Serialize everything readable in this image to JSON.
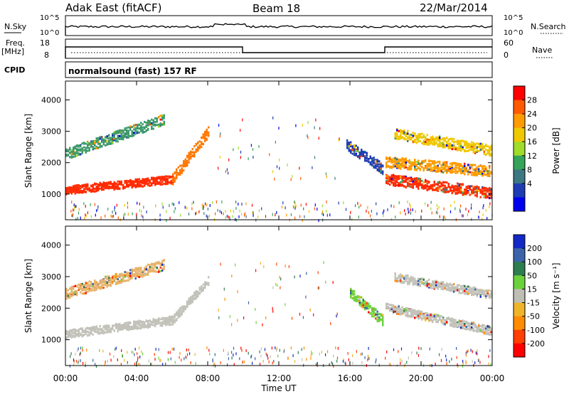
{
  "header": {
    "radar": "Adak East (fitACF)",
    "beam": "Beam 18",
    "date": "22/Mar/2014"
  },
  "top_panels": {
    "nsky_label": "N.Sky",
    "nsearch_label": "N.Search",
    "scale_hi": "10^5",
    "scale_lo": "10^0",
    "freq_label": "Freq.",
    "freq_unit": "[MHz]",
    "freq_ticks": [
      "18",
      "8"
    ],
    "nave_label": "Nave",
    "nave_ticks": [
      "60",
      "0"
    ],
    "cpid_label": "CPID",
    "cpid_text": "normalsound (fast) 157 RF"
  },
  "chart_data": [
    {
      "type": "heatmap",
      "name": "power",
      "ylabel": "Slant Range [km]",
      "xlabel": "",
      "x_ticks": [
        "00:00",
        "04:00",
        "08:00",
        "12:00",
        "16:00",
        "20:00",
        "00:00"
      ],
      "y_ticks": [
        1000,
        2000,
        3000,
        4000
      ],
      "xlim_hours": [
        0,
        24
      ],
      "ylim_km": [
        180,
        4600
      ],
      "colorbar": {
        "label": "Power [dB]",
        "ticks": [
          "28",
          "24",
          "20",
          "16",
          "12",
          "8",
          "4"
        ],
        "colors": [
          "#ff0000",
          "#ff5a00",
          "#ff9b00",
          "#f0c800",
          "#a0dc2a",
          "#34a45a",
          "#3c7882",
          "#1e3cb4",
          "#0000f0"
        ]
      },
      "layers": [
        {
          "from_h": 0.0,
          "to_h": 6.0,
          "r0": 1150,
          "r1": 1500,
          "color": "#ff2a00"
        },
        {
          "from_h": 6.0,
          "to_h": 8.0,
          "r0": 1500,
          "r1": 3000,
          "color": "#ff7800"
        },
        {
          "from_h": 0.0,
          "to_h": 5.5,
          "r0": 2300,
          "r1": 3400,
          "color": "#3c9a6a"
        },
        {
          "from_h": 18.0,
          "to_h": 24.0,
          "r0": 1500,
          "r1": 1050,
          "color": "#ff2a00"
        },
        {
          "from_h": 18.0,
          "to_h": 24.0,
          "r0": 2050,
          "r1": 1750,
          "color": "#ff9b00"
        },
        {
          "from_h": 18.5,
          "to_h": 24.0,
          "r0": 2950,
          "r1": 2400,
          "color": "#f0c800"
        },
        {
          "from_h": 15.8,
          "to_h": 17.9,
          "r0": 2600,
          "r1": 1800,
          "color": "#1e3cb4"
        }
      ]
    },
    {
      "type": "heatmap",
      "name": "velocity",
      "ylabel": "Slant Range [km]",
      "xlabel": "Time UT",
      "x_ticks": [
        "00:00",
        "04:00",
        "08:00",
        "12:00",
        "16:00",
        "20:00",
        "00:00"
      ],
      "y_ticks": [
        1000,
        2000,
        3000,
        4000
      ],
      "xlim_hours": [
        0,
        24
      ],
      "ylim_km": [
        180,
        4600
      ],
      "colorbar": {
        "label": "Velocity [m s⁻¹]",
        "ticks": [
          "200",
          "100",
          "50",
          "15",
          "-15",
          "-50",
          "-100",
          "-200"
        ],
        "colors": [
          "#1428c8",
          "#3c64aa",
          "#2e7d4e",
          "#6cd23c",
          "#bebeb4",
          "#f0b428",
          "#ff8c00",
          "#ff4000",
          "#ff0000"
        ]
      },
      "layers": [
        {
          "from_h": 0.0,
          "to_h": 6.0,
          "r0": 1200,
          "r1": 1650,
          "color": "#c2c2ba"
        },
        {
          "from_h": 6.0,
          "to_h": 8.0,
          "r0": 1650,
          "r1": 2900,
          "color": "#c2c2ba"
        },
        {
          "from_h": 0.0,
          "to_h": 5.5,
          "r0": 2500,
          "r1": 3400,
          "color": "#e7b26a"
        },
        {
          "from_h": 18.0,
          "to_h": 24.0,
          "r0": 2050,
          "r1": 1300,
          "color": "#c2c2ba"
        },
        {
          "from_h": 18.5,
          "to_h": 24.0,
          "r0": 3000,
          "r1": 2450,
          "color": "#c2c2ba"
        },
        {
          "from_h": 16.0,
          "to_h": 17.9,
          "r0": 2500,
          "r1": 1600,
          "color": "#6cd23c"
        }
      ]
    }
  ]
}
